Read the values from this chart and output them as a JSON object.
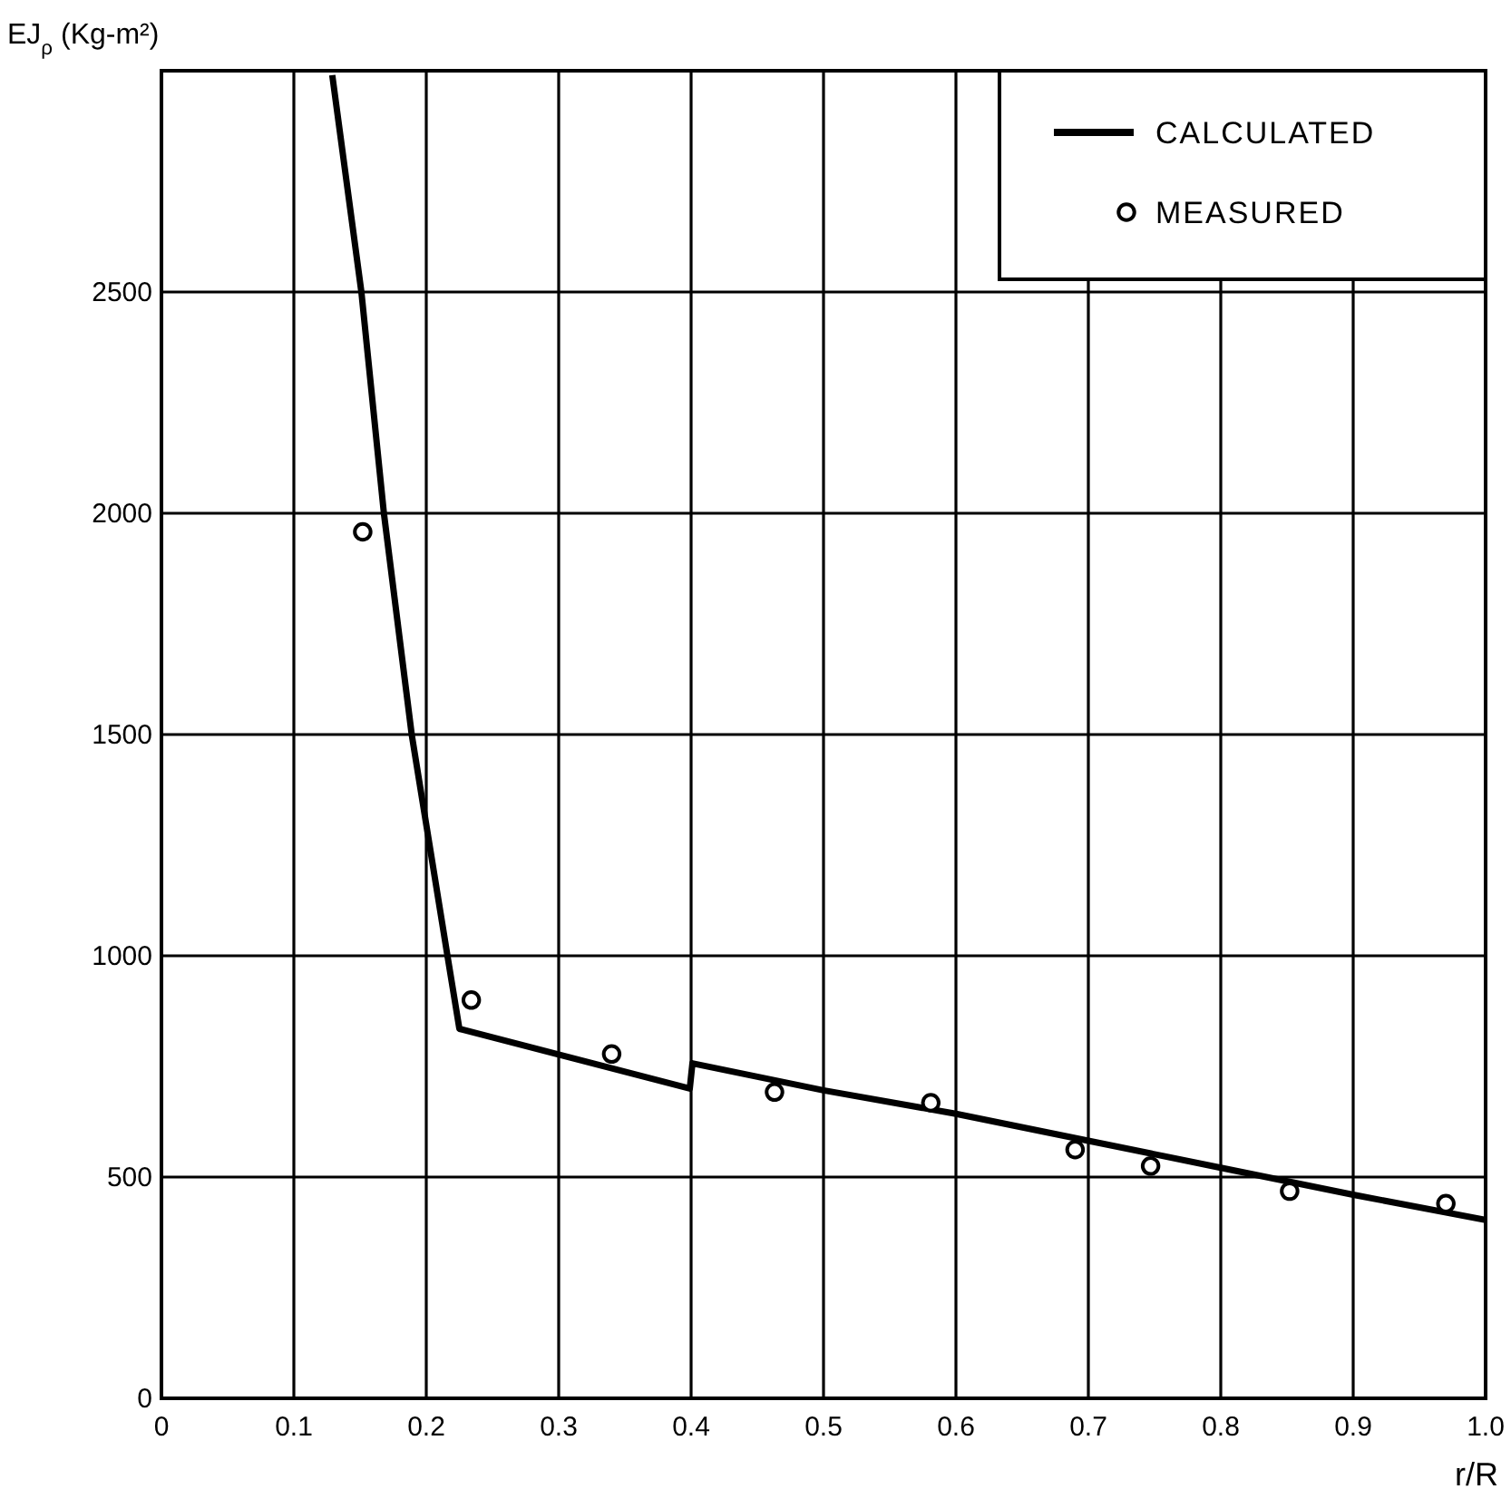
{
  "chart_data": {
    "type": "line",
    "xlabel": "r/R",
    "ylabel": "EJ$_{ρ}$ (Kg-m²)",
    "xlim": [
      0,
      1
    ],
    "ylim": [
      0,
      3000
    ],
    "xticks": [
      0,
      0.1,
      0.2,
      0.3,
      0.4,
      0.5,
      0.6,
      0.7,
      0.8,
      0.9,
      {
        "value": 1,
        "label": "1.0"
      }
    ],
    "yticks": [
      0,
      500,
      1000,
      1500,
      2000,
      2500
    ],
    "grid": true,
    "legend": "top right",
    "line_style": "solid",
    "series": [
      {
        "name": "CALCULATED",
        "type": "line",
        "color": "#000000",
        "marker": "none",
        "x": [
          0.129,
          0.151,
          0.168,
          0.189,
          0.216,
          0.225,
          0.399,
          0.401,
          0.5,
          0.6,
          0.7,
          0.8,
          0.9,
          1.0
        ],
        "values": [
          2990,
          2500,
          2000,
          1500,
          1000,
          835,
          700,
          757,
          696,
          643,
          582,
          521,
          460,
          403
        ]
      },
      {
        "name": "MEASURED",
        "type": "scatter",
        "color": "#000000",
        "marker": "circle",
        "x": [
          0.152,
          0.234,
          0.34,
          0.463,
          0.581,
          0.69,
          0.747,
          0.852,
          0.97
        ],
        "values": [
          1958,
          900,
          778,
          692,
          668,
          562,
          525,
          468,
          440
        ]
      }
    ]
  }
}
